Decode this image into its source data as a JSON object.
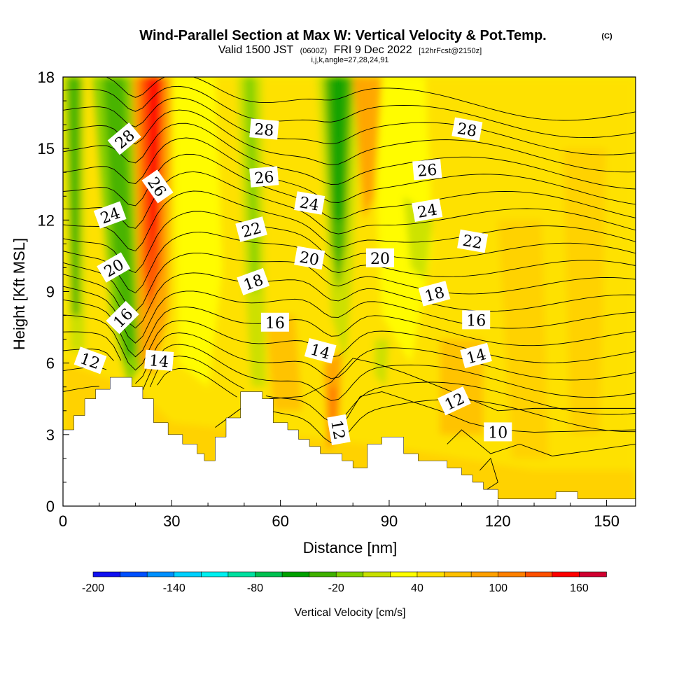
{
  "title": {
    "main": "Wind-Parallel Section at Max W: Vertical Velocity & Pot.Temp.",
    "copyright": "(C)",
    "valid_prefix": "Valid 1500 JST",
    "valid_utc": "(0600Z)",
    "valid_date": "FRI 9 Dec 2022",
    "forecast": "[12hrFcst@2150z]",
    "indices": "i,j,k,angle=27,28,24,91"
  },
  "chart_data": {
    "type": "heatmap",
    "xlabel": "Distance [nm]",
    "ylabel": "Height [Kft MSL]",
    "xlim": [
      0,
      158
    ],
    "ylim": [
      0,
      18
    ],
    "x_ticks": [
      0,
      30,
      60,
      90,
      120,
      150
    ],
    "y_ticks": [
      0,
      3,
      6,
      9,
      12,
      15,
      18
    ],
    "colorbar": {
      "label": "Vertical Velocity [cm/s]",
      "min": -200,
      "max": 180,
      "step": 20,
      "tick_labels": [
        "-200",
        "-140",
        "-80",
        "-20",
        "40",
        "100",
        "160"
      ],
      "tick_values": [
        -200,
        -140,
        -80,
        -20,
        40,
        100,
        160
      ],
      "colors": [
        "#1010f0",
        "#0050ff",
        "#0090ff",
        "#00d0ff",
        "#00f0f0",
        "#00e0a0",
        "#00c050",
        "#00a000",
        "#40b000",
        "#80d000",
        "#c8e000",
        "#ffff00",
        "#ffe000",
        "#ffc000",
        "#ffa000",
        "#ff8000",
        "#ff5000",
        "#ff0000",
        "#d00030",
        "#a00060",
        "#700090"
      ]
    },
    "terrain": [
      [
        0,
        3.2
      ],
      [
        3,
        3.2
      ],
      [
        3,
        3.8
      ],
      [
        6,
        3.8
      ],
      [
        6,
        4.5
      ],
      [
        9,
        4.5
      ],
      [
        9,
        4.9
      ],
      [
        13,
        4.9
      ],
      [
        13,
        5.4
      ],
      [
        19,
        5.4
      ],
      [
        19,
        5
      ],
      [
        22,
        5
      ],
      [
        22,
        4.5
      ],
      [
        25,
        4.5
      ],
      [
        25,
        3.5
      ],
      [
        29,
        3.5
      ],
      [
        29,
        3
      ],
      [
        33,
        3
      ],
      [
        33,
        2.6
      ],
      [
        37,
        2.6
      ],
      [
        37,
        2.2
      ],
      [
        39,
        2.2
      ],
      [
        39,
        1.9
      ],
      [
        42,
        1.9
      ],
      [
        42,
        2.9
      ],
      [
        45,
        2.9
      ],
      [
        45,
        3.7
      ],
      [
        49,
        3.7
      ],
      [
        49,
        4.8
      ],
      [
        55,
        4.8
      ],
      [
        55,
        4.5
      ],
      [
        58,
        4.5
      ],
      [
        58,
        3.5
      ],
      [
        62,
        3.5
      ],
      [
        62,
        3.2
      ],
      [
        65,
        3.2
      ],
      [
        65,
        2.8
      ],
      [
        68,
        2.8
      ],
      [
        68,
        2.5
      ],
      [
        71,
        2.5
      ],
      [
        71,
        2.2
      ],
      [
        77,
        2.2
      ],
      [
        77,
        1.9
      ],
      [
        80,
        1.9
      ],
      [
        80,
        1.6
      ],
      [
        84,
        1.6
      ],
      [
        84,
        2.6
      ],
      [
        88,
        2.6
      ],
      [
        88,
        2.9
      ],
      [
        94,
        2.9
      ],
      [
        94,
        2.2
      ],
      [
        98,
        2.2
      ],
      [
        98,
        1.9
      ],
      [
        106,
        1.9
      ],
      [
        106,
        1.6
      ],
      [
        110,
        1.6
      ],
      [
        110,
        1.3
      ],
      [
        113,
        1.3
      ],
      [
        113,
        1
      ],
      [
        116,
        1
      ],
      [
        116,
        0.7
      ],
      [
        120,
        0.7
      ],
      [
        120,
        0.3
      ],
      [
        136,
        0.3
      ],
      [
        136,
        0.6
      ],
      [
        142,
        0.6
      ],
      [
        142,
        0.3
      ],
      [
        158,
        0.3
      ]
    ],
    "contour_labels": [
      {
        "text": "28",
        "x": 17,
        "y": 15.4,
        "angle": 40
      },
      {
        "text": "26",
        "x": 26,
        "y": 13.4,
        "angle": -55
      },
      {
        "text": "24",
        "x": 13,
        "y": 12.2,
        "angle": 20
      },
      {
        "text": "20",
        "x": 14,
        "y": 10,
        "angle": 30
      },
      {
        "text": "16",
        "x": 16.5,
        "y": 7.9,
        "angle": 45
      },
      {
        "text": "12",
        "x": 7.5,
        "y": 6.1,
        "angle": -20
      },
      {
        "text": "14",
        "x": 26.5,
        "y": 6.1,
        "angle": -5
      },
      {
        "text": "28",
        "x": 55.5,
        "y": 15.8,
        "angle": -5
      },
      {
        "text": "26",
        "x": 55.5,
        "y": 13.8,
        "angle": 5
      },
      {
        "text": "22",
        "x": 52,
        "y": 11.6,
        "angle": 15
      },
      {
        "text": "18",
        "x": 52.5,
        "y": 9.4,
        "angle": 20
      },
      {
        "text": "16",
        "x": 58.5,
        "y": 7.7,
        "angle": 0
      },
      {
        "text": "24",
        "x": 68,
        "y": 12.7,
        "angle": -10
      },
      {
        "text": "20",
        "x": 68,
        "y": 10.4,
        "angle": -10
      },
      {
        "text": "14",
        "x": 71,
        "y": 6.5,
        "angle": -15
      },
      {
        "text": "12",
        "x": 76,
        "y": 3.2,
        "angle": -80
      },
      {
        "text": "20",
        "x": 87.5,
        "y": 10.4,
        "angle": 0
      },
      {
        "text": "28",
        "x": 111.5,
        "y": 15.8,
        "angle": -10
      },
      {
        "text": "26",
        "x": 100.5,
        "y": 14.1,
        "angle": 5
      },
      {
        "text": "24",
        "x": 100.5,
        "y": 12.4,
        "angle": 10
      },
      {
        "text": "18",
        "x": 102.5,
        "y": 8.9,
        "angle": 15
      },
      {
        "text": "22",
        "x": 113,
        "y": 11.1,
        "angle": -10
      },
      {
        "text": "16",
        "x": 114,
        "y": 7.8,
        "angle": 0
      },
      {
        "text": "14",
        "x": 114,
        "y": 6.3,
        "angle": 15
      },
      {
        "text": "12",
        "x": 108,
        "y": 4.4,
        "angle": 25
      },
      {
        "text": "10",
        "x": 120,
        "y": 3.1,
        "angle": 0
      }
    ]
  }
}
